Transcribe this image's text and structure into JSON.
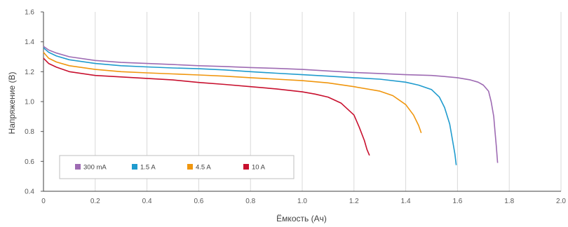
{
  "chart_data": {
    "type": "line",
    "xlabel": "Ёмкость (Ач)",
    "ylabel": "Напряжение (В)",
    "xlim": [
      0,
      2.0
    ],
    "ylim": [
      0.4,
      1.6
    ],
    "xticks": [
      "0",
      "0.2",
      "0.4",
      "0.6",
      "0.8",
      "1.0",
      "1.2",
      "1.4",
      "1.6",
      "1.8",
      "2.0"
    ],
    "yticks": [
      "0.4",
      "0.6",
      "0.8",
      "1.0",
      "1.2",
      "1.4",
      "1.6"
    ],
    "grid": "vertical",
    "legend": "bottom-left",
    "series": [
      {
        "name": "300 mA",
        "color": "#9e6bb3",
        "x": [
          0,
          0.02,
          0.05,
          0.1,
          0.2,
          0.3,
          0.4,
          0.5,
          0.6,
          0.7,
          0.8,
          0.9,
          1.0,
          1.1,
          1.2,
          1.3,
          1.4,
          1.5,
          1.55,
          1.6,
          1.65,
          1.68,
          1.7,
          1.72,
          1.73,
          1.74,
          1.745,
          1.75,
          1.755
        ],
        "y": [
          1.37,
          1.345,
          1.325,
          1.3,
          1.275,
          1.262,
          1.255,
          1.248,
          1.24,
          1.235,
          1.228,
          1.222,
          1.215,
          1.205,
          1.195,
          1.188,
          1.18,
          1.175,
          1.168,
          1.16,
          1.145,
          1.13,
          1.11,
          1.07,
          1.0,
          0.9,
          0.8,
          0.7,
          0.59
        ]
      },
      {
        "name": "1.5 A",
        "color": "#1f9bce",
        "x": [
          0,
          0.02,
          0.05,
          0.1,
          0.2,
          0.3,
          0.4,
          0.5,
          0.6,
          0.7,
          0.8,
          0.9,
          1.0,
          1.1,
          1.2,
          1.3,
          1.4,
          1.45,
          1.5,
          1.53,
          1.55,
          1.57,
          1.58,
          1.59,
          1.595
        ],
        "y": [
          1.36,
          1.33,
          1.305,
          1.28,
          1.255,
          1.24,
          1.232,
          1.225,
          1.22,
          1.212,
          1.2,
          1.19,
          1.18,
          1.17,
          1.16,
          1.15,
          1.13,
          1.11,
          1.08,
          1.03,
          0.96,
          0.85,
          0.75,
          0.65,
          0.575
        ]
      },
      {
        "name": "4.5 A",
        "color": "#f0960e",
        "x": [
          0,
          0.02,
          0.05,
          0.1,
          0.2,
          0.3,
          0.4,
          0.5,
          0.6,
          0.7,
          0.8,
          0.9,
          1.0,
          1.1,
          1.2,
          1.3,
          1.35,
          1.4,
          1.43,
          1.45,
          1.46
        ],
        "y": [
          1.33,
          1.29,
          1.265,
          1.24,
          1.215,
          1.2,
          1.192,
          1.185,
          1.178,
          1.17,
          1.16,
          1.15,
          1.14,
          1.125,
          1.1,
          1.07,
          1.04,
          0.98,
          0.91,
          0.84,
          0.79
        ]
      },
      {
        "name": "10 A",
        "color": "#c8102e",
        "x": [
          0,
          0.02,
          0.05,
          0.1,
          0.2,
          0.3,
          0.4,
          0.5,
          0.6,
          0.7,
          0.8,
          0.9,
          1.0,
          1.05,
          1.1,
          1.15,
          1.2,
          1.22,
          1.24,
          1.25,
          1.26
        ],
        "y": [
          1.29,
          1.255,
          1.23,
          1.2,
          1.175,
          1.165,
          1.155,
          1.145,
          1.128,
          1.115,
          1.1,
          1.085,
          1.065,
          1.05,
          1.03,
          0.99,
          0.91,
          0.83,
          0.74,
          0.68,
          0.64
        ]
      }
    ]
  }
}
